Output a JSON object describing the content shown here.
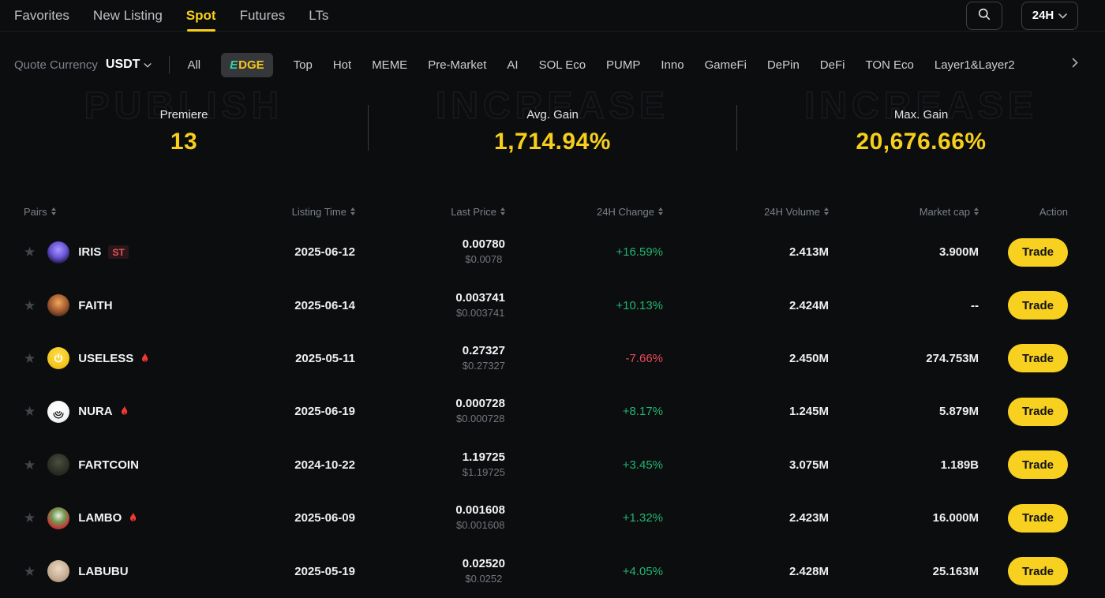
{
  "colors": {
    "accent_yellow": "#f7cf1b",
    "positive_green": "#22b573",
    "negative_red": "#ea4b5f",
    "background": "#0b0d0e",
    "trade_button": "#f8d120"
  },
  "nav": {
    "items": [
      {
        "label": "Favorites",
        "active": false
      },
      {
        "label": "New Listing",
        "active": false
      },
      {
        "label": "Spot",
        "active": true
      },
      {
        "label": "Futures",
        "active": false
      },
      {
        "label": "LTs",
        "active": false
      }
    ],
    "search_icon": "magnifier",
    "timeframe": {
      "value": "24H",
      "icon": "chevron-down"
    }
  },
  "filters": {
    "quote_currency_label": "Quote Currency",
    "quote_currency_value": "USDT",
    "quote_icon": "chevron-down",
    "more_icon": "chevron-right",
    "tabs": [
      {
        "label": "All",
        "active": false
      },
      {
        "label": "EDGE",
        "active": true,
        "logo": true
      },
      {
        "label": "Top",
        "active": false
      },
      {
        "label": "Hot",
        "active": false
      },
      {
        "label": "MEME",
        "active": false
      },
      {
        "label": "Pre-Market",
        "active": false
      },
      {
        "label": "AI",
        "active": false
      },
      {
        "label": "SOL Eco",
        "active": false
      },
      {
        "label": "PUMP",
        "active": false
      },
      {
        "label": "Inno",
        "active": false
      },
      {
        "label": "GameFi",
        "active": false
      },
      {
        "label": "DePin",
        "active": false
      },
      {
        "label": "DeFi",
        "active": false
      },
      {
        "label": "TON Eco",
        "active": false
      },
      {
        "label": "Layer1&Layer2",
        "active": false
      }
    ]
  },
  "stats": {
    "items": [
      {
        "label": "Premiere",
        "value": "13",
        "watermark": "PUBLISH"
      },
      {
        "label": "Avg. Gain",
        "value": "1,714.94%",
        "watermark": "INCREASE"
      },
      {
        "label": "Max. Gain",
        "value": "20,676.66%",
        "watermark": "INCREASE"
      }
    ]
  },
  "table": {
    "columns": [
      {
        "label": "Pairs",
        "sortable": true
      },
      {
        "label": "Listing Time",
        "sortable": true
      },
      {
        "label": "Last Price",
        "sortable": true
      },
      {
        "label": "24H Change",
        "sortable": true
      },
      {
        "label": "24H Volume",
        "sortable": true
      },
      {
        "label": "Market cap",
        "sortable": true
      },
      {
        "label": "Action",
        "sortable": false
      }
    ],
    "action_label": "Trade",
    "rows": [
      {
        "name": "IRIS",
        "badge": "ST",
        "hot": false,
        "listing_time": "2025-06-12",
        "last_price": "0.00780",
        "last_price_usd": "$0.0078",
        "change": "+16.59%",
        "change_dir": "up",
        "volume": "2.413M",
        "market_cap": "3.900M",
        "icon": {
          "name": "iris-coin",
          "glyph": "",
          "colors": [
            "#a898ff 0%",
            "#6a55d8 45%",
            "#1a1233 82%"
          ]
        }
      },
      {
        "name": "FAITH",
        "badge": "",
        "hot": false,
        "listing_time": "2025-06-14",
        "last_price": "0.003741",
        "last_price_usd": "$0.003741",
        "change": "+10.13%",
        "change_dir": "up",
        "volume": "2.424M",
        "market_cap": "--",
        "icon": {
          "name": "faith-coin",
          "glyph": "",
          "colors": [
            "#f2a85c 0%",
            "#a05a2e 50%",
            "#38221a 88%"
          ]
        }
      },
      {
        "name": "USELESS",
        "badge": "",
        "hot": true,
        "listing_time": "2025-05-11",
        "last_price": "0.27327",
        "last_price_usd": "$0.27327",
        "change": "-7.66%",
        "change_dir": "down",
        "volume": "2.450M",
        "market_cap": "274.753M",
        "icon": {
          "name": "useless-coin",
          "glyph": "power",
          "colors": [
            "#ffdf4d 0%",
            "#f3c71f 60%",
            "#d9a90f 100%"
          ]
        }
      },
      {
        "name": "NURA",
        "badge": "",
        "hot": true,
        "listing_time": "2025-06-19",
        "last_price": "0.000728",
        "last_price_usd": "$0.000728",
        "change": "+8.17%",
        "change_dir": "up",
        "volume": "1.245M",
        "market_cap": "5.879M",
        "icon": {
          "name": "nura-coin",
          "glyph": "arcs",
          "colors": [
            "#ffffff 0%",
            "#f5f5f5 60%",
            "#dcdcdc 100%"
          ]
        }
      },
      {
        "name": "FARTCOIN",
        "badge": "",
        "hot": false,
        "listing_time": "2024-10-22",
        "last_price": "1.19725",
        "last_price_usd": "$1.19725",
        "change": "+3.45%",
        "change_dir": "up",
        "volume": "3.075M",
        "market_cap": "1.189B",
        "icon": {
          "name": "fartcoin-coin",
          "glyph": "",
          "colors": [
            "#4a4f42 0%",
            "#2c3026 55%",
            "#181b12 100%"
          ]
        }
      },
      {
        "name": "LAMBO",
        "badge": "",
        "hot": true,
        "listing_time": "2025-06-09",
        "last_price": "0.001608",
        "last_price_usd": "$0.001608",
        "change": "+1.32%",
        "change_dir": "up",
        "volume": "2.423M",
        "market_cap": "16.000M",
        "icon": {
          "name": "lambo-coin",
          "glyph": "",
          "colors": [
            "#e9efe3 0%",
            "#70994f 38%",
            "#c23a3a 68%",
            "#92282a 100%"
          ]
        }
      },
      {
        "name": "LABUBU",
        "badge": "",
        "hot": false,
        "listing_time": "2025-05-19",
        "last_price": "0.02520",
        "last_price_usd": "$0.0252",
        "change": "+4.05%",
        "change_dir": "up",
        "volume": "2.428M",
        "market_cap": "25.163M",
        "icon": {
          "name": "labubu-coin",
          "glyph": "",
          "colors": [
            "#ead9c4 0%",
            "#c3ab92 60%",
            "#93806b 100%"
          ]
        }
      }
    ]
  }
}
